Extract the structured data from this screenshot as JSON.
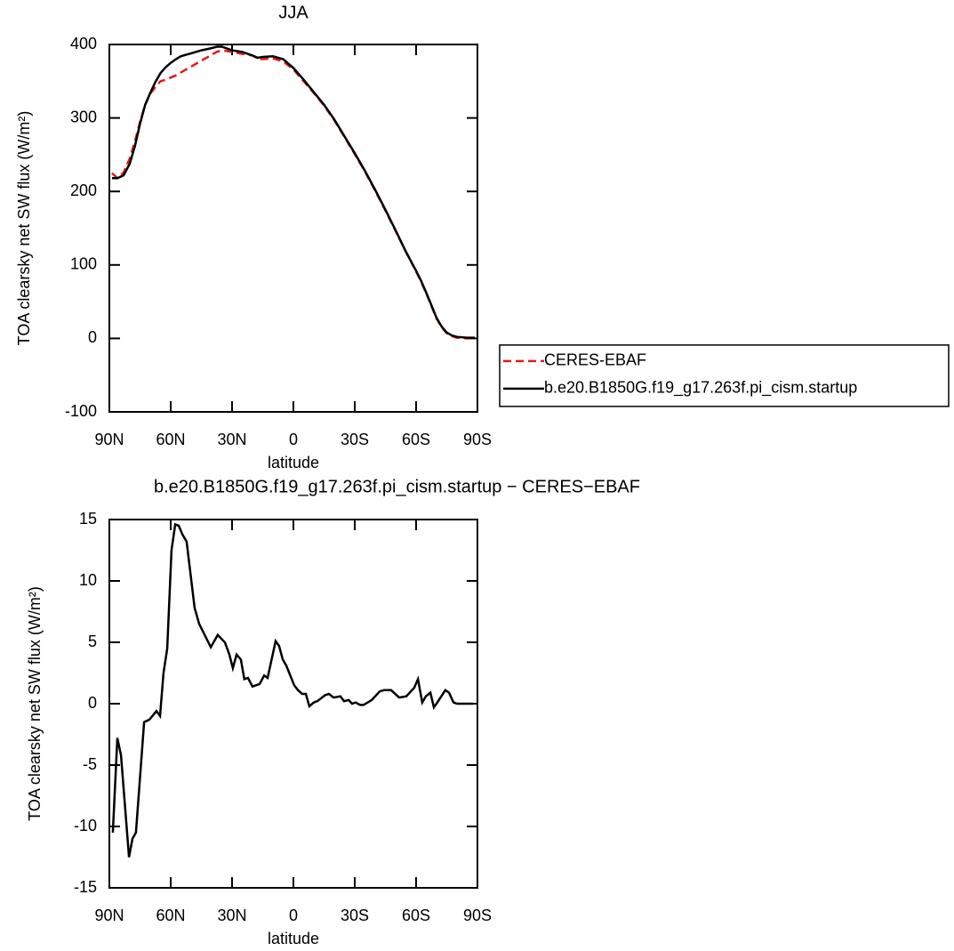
{
  "chart_data": [
    {
      "type": "line",
      "title": "JJA",
      "xlabel": "latitude",
      "ylabel": "TOA clearsky net SW flux (W/m²)",
      "xlim": [
        90,
        -90
      ],
      "xticks": [
        {
          "value": 90,
          "label": "90N"
        },
        {
          "value": 60,
          "label": "60N"
        },
        {
          "value": 30,
          "label": "30N"
        },
        0,
        {
          "value": -30,
          "label": "30S"
        },
        {
          "value": -60,
          "label": "60S"
        },
        {
          "value": -90,
          "label": "90S"
        }
      ],
      "ylim": [
        -100,
        400
      ],
      "yticks": [
        -100,
        0,
        100,
        200,
        300,
        400
      ],
      "legend": "right",
      "x": [
        88.75,
        86,
        83,
        80,
        77.5,
        75,
        72.5,
        70,
        67.5,
        65,
        62.5,
        60,
        57.5,
        55,
        50,
        45,
        40,
        37.5,
        35,
        30,
        25,
        20,
        17.5,
        15,
        10,
        5,
        0,
        -5,
        -10,
        -15,
        -20,
        -25,
        -30,
        -35,
        -40,
        -45,
        -50,
        -55,
        -60,
        -62.5,
        -65,
        -67.5,
        -70,
        -72.5,
        -75,
        -77.5,
        -80,
        -85,
        -88.75
      ],
      "series": [
        {
          "name": "CERES-EBAF",
          "color": "#e41a1c",
          "dashed": true,
          "values": [
            225,
            218,
            226,
            245,
            268,
            295,
            318,
            333,
            342,
            350,
            352,
            355,
            358,
            362,
            370,
            378,
            386,
            390,
            392,
            390,
            387,
            385,
            381,
            380,
            381,
            377,
            366,
            350,
            334,
            317,
            297,
            274,
            251,
            227,
            201,
            174,
            146,
            118,
            91,
            77,
            61,
            44,
            27,
            15,
            7,
            3,
            1,
            0,
            0
          ]
        },
        {
          "name": "b.e20.B1850G.f19_g17.263f.pi_cism.startup",
          "color": "#000000",
          "dashed": false,
          "values": [
            218,
            218,
            222,
            238,
            262,
            292,
            318,
            334,
            349,
            361,
            369,
            375,
            380,
            384,
            388,
            392,
            395,
            397,
            397,
            392,
            390,
            385,
            382,
            383,
            384,
            380,
            368,
            352,
            335,
            318,
            298,
            275,
            252,
            228,
            202,
            175,
            147,
            118,
            92,
            78,
            62,
            45,
            28,
            16,
            8,
            4,
            2,
            1,
            1
          ]
        }
      ]
    },
    {
      "type": "line",
      "title": "b.e20.B1850G.f19_g17.263f.pi_cism.startup − CERES−EBAF",
      "xlabel": "latitude",
      "ylabel": "TOA clearsky net SW flux (W/m²)",
      "xlim": [
        90,
        -90
      ],
      "xticks": [
        {
          "value": 90,
          "label": "90N"
        },
        {
          "value": 60,
          "label": "60N"
        },
        {
          "value": 30,
          "label": "30N"
        },
        0,
        {
          "value": -30,
          "label": "30S"
        },
        {
          "value": -60,
          "label": "60S"
        },
        {
          "value": -90,
          "label": "90S"
        }
      ],
      "ylim": [
        -15,
        15
      ],
      "yticks": [
        -15,
        -10,
        -5,
        0,
        5,
        10,
        15
      ],
      "x": [
        88.3,
        86.1,
        84.3,
        80.4,
        78.7,
        77,
        73,
        70.4,
        67,
        65.2,
        63.5,
        61.7,
        59.6,
        57.8,
        56.1,
        54.3,
        52.2,
        48.3,
        46.1,
        40.4,
        37,
        33.5,
        31.3,
        29.6,
        27.8,
        25.7,
        24,
        22.2,
        20,
        16.5,
        14.3,
        12.6,
        8.7,
        7,
        5.2,
        3.5,
        -0.4,
        -2.2,
        -4.3,
        -6.1,
        -7.8,
        -10,
        -11.7,
        -15.6,
        -17.4,
        -19.6,
        -23,
        -24.8,
        -27,
        -28.7,
        -30.4,
        -32.6,
        -34.3,
        -38.3,
        -42.2,
        -44.3,
        -47.8,
        -51.7,
        -55.2,
        -59.1,
        -60.9,
        -63,
        -64.8,
        -67,
        -68.7,
        -70.4,
        -74.3,
        -76.1,
        -78.3,
        -80,
        -83.9,
        -87.8
      ],
      "series": [
        {
          "color": "#000000",
          "dashed": false,
          "values": [
            -10.5,
            -2.8,
            -4.2,
            -12.5,
            -11,
            -10.5,
            -1.5,
            -1.3,
            -0.6,
            -1,
            2.5,
            4.5,
            12.5,
            14.6,
            14.5,
            13.8,
            13.2,
            7.8,
            6.5,
            4.6,
            5.6,
            5,
            4,
            2.9,
            4,
            3.6,
            2,
            2.1,
            1.4,
            1.6,
            2.3,
            2.1,
            5.1,
            4.7,
            3.6,
            3.1,
            1.5,
            1.1,
            0.8,
            0.8,
            -0.2,
            0.1,
            0.2,
            0.7,
            0.8,
            0.5,
            0.6,
            0.2,
            0.3,
            0,
            0.1,
            -0.1,
            -0.1,
            0.3,
            1,
            1.1,
            1.1,
            0.5,
            0.6,
            1.3,
            2,
            0.1,
            0.6,
            0.9,
            -0.3,
            0.1,
            1.1,
            0.9,
            0.1,
            0,
            0,
            0
          ]
        }
      ]
    }
  ]
}
